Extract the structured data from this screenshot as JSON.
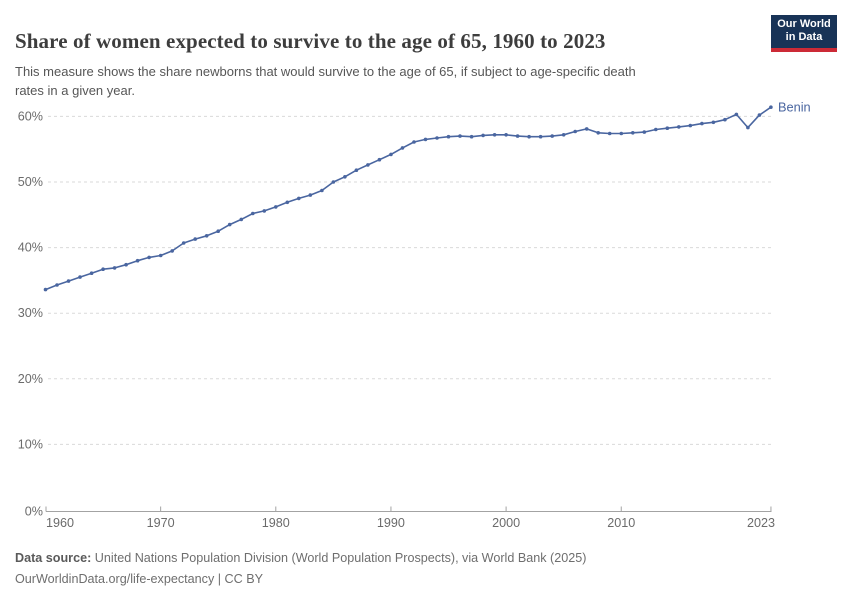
{
  "header": {
    "title": "Share of women expected to survive to the age of 65, 1960 to 2023",
    "subtitle": "This measure shows the share newborns that would survive to the age of 65, if subject to age-specific death\nrates in a given year."
  },
  "logo": {
    "line1": "Our World",
    "line2": "in Data"
  },
  "footer": {
    "source_label": "Data source:",
    "source_text": " United Nations Population Division (World Population Prospects), via World Bank (2025)",
    "citation": "OurWorldinData.org/life-expectancy | CC BY"
  },
  "colors": {
    "series_blue": "#4a66a0",
    "grid": "#dadada",
    "axis": "#a3a3a3",
    "tick_text": "#6b6b6b",
    "logo_bg": "#183357",
    "logo_red": "#cc2a36"
  },
  "chart_data": {
    "type": "line",
    "title": "Share of women expected to survive to the age of 65, 1960 to 2023",
    "xlabel": "",
    "ylabel": "",
    "ylim": [
      0,
      65
    ],
    "xlim": [
      1960,
      2023
    ],
    "grid": "horizontal-dashed",
    "legend_position": "end-of-line-label",
    "yticks": [
      {
        "value": 0,
        "label": "0%"
      },
      {
        "value": 10,
        "label": "10%"
      },
      {
        "value": 20,
        "label": "20%"
      },
      {
        "value": 30,
        "label": "30%"
      },
      {
        "value": 40,
        "label": "40%"
      },
      {
        "value": 50,
        "label": "50%"
      },
      {
        "value": 60,
        "label": "60%"
      }
    ],
    "xticks": [
      {
        "year": 1960,
        "label": "1960"
      },
      {
        "year": 1970,
        "label": "1970"
      },
      {
        "year": 1980,
        "label": "1980"
      },
      {
        "year": 1990,
        "label": "1990"
      },
      {
        "year": 2000,
        "label": "2000"
      },
      {
        "year": 2010,
        "label": "2010"
      },
      {
        "year": 2023,
        "label": "2023"
      }
    ],
    "series": [
      {
        "name": "Benin",
        "color": "#4a66a0",
        "x": [
          1960,
          1961,
          1962,
          1963,
          1964,
          1965,
          1966,
          1967,
          1968,
          1969,
          1970,
          1971,
          1972,
          1973,
          1974,
          1975,
          1976,
          1977,
          1978,
          1979,
          1980,
          1981,
          1982,
          1983,
          1984,
          1985,
          1986,
          1987,
          1988,
          1989,
          1990,
          1991,
          1992,
          1993,
          1994,
          1995,
          1996,
          1997,
          1998,
          1999,
          2000,
          2001,
          2002,
          2003,
          2004,
          2005,
          2006,
          2007,
          2008,
          2009,
          2010,
          2011,
          2012,
          2013,
          2014,
          2015,
          2016,
          2017,
          2018,
          2019,
          2020,
          2021,
          2022,
          2023
        ],
        "values": [
          33.6,
          34.3,
          34.9,
          35.5,
          36.1,
          36.7,
          36.9,
          37.4,
          38.0,
          38.5,
          38.8,
          39.5,
          40.7,
          41.3,
          41.8,
          42.5,
          43.5,
          44.3,
          45.2,
          45.6,
          46.2,
          46.9,
          47.5,
          48.0,
          48.7,
          50.0,
          50.8,
          51.8,
          52.6,
          53.4,
          54.2,
          55.2,
          56.1,
          56.5,
          56.7,
          56.9,
          57.0,
          56.9,
          57.1,
          57.2,
          57.2,
          57.0,
          56.9,
          56.9,
          57.0,
          57.2,
          57.7,
          58.1,
          57.5,
          57.4,
          57.4,
          57.5,
          57.6,
          58.0,
          58.2,
          58.4,
          58.6,
          58.9,
          59.1,
          59.5,
          60.3,
          58.3,
          60.2,
          61.4
        ]
      }
    ]
  }
}
